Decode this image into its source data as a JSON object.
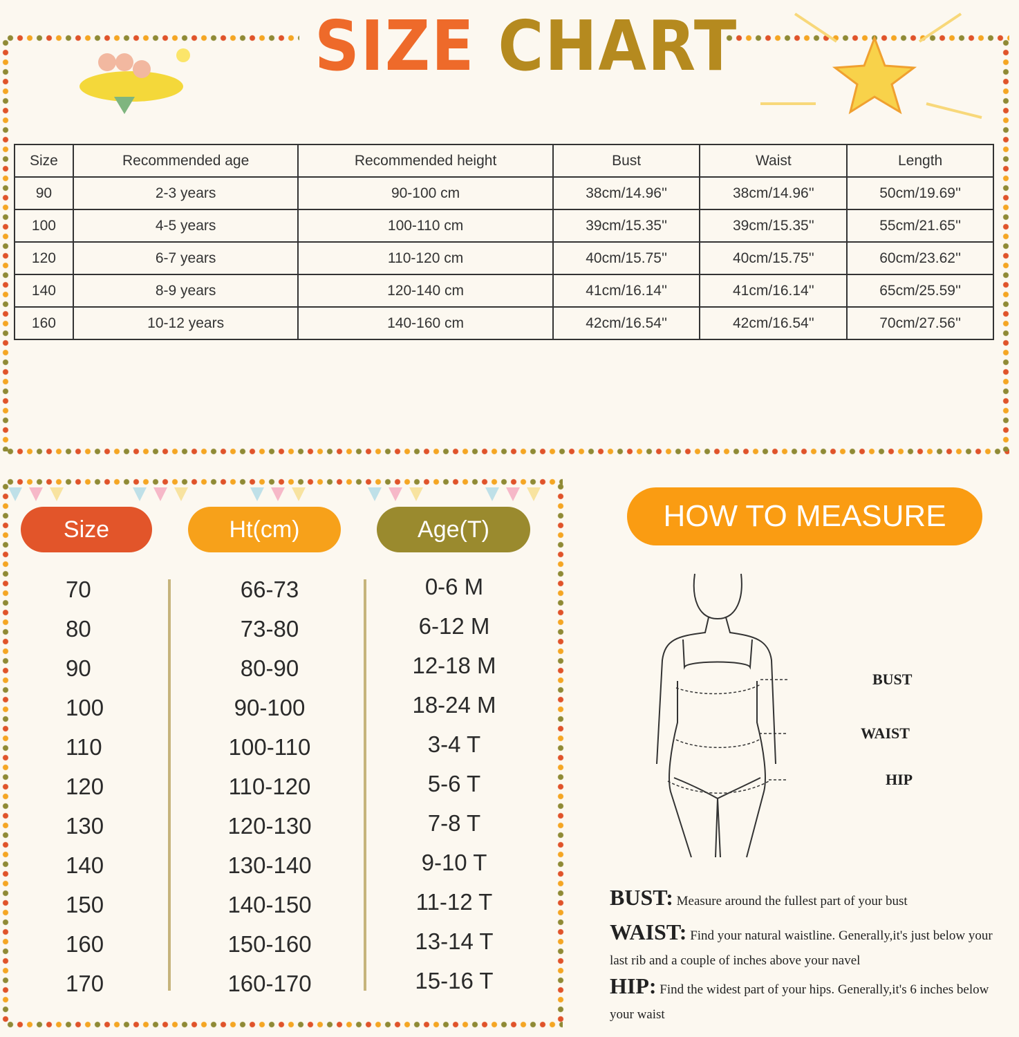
{
  "title": {
    "word1": "SIZE",
    "word2": "CHART"
  },
  "colors": {
    "red": "#e2552a",
    "orange": "#f7a11a",
    "olive": "#9a8a2e",
    "how_bg": "#fa9c12"
  },
  "top_table": {
    "headers": [
      "Size",
      "Recommended age",
      "Recommended height",
      "Bust",
      "Waist",
      "Length"
    ],
    "rows": [
      [
        "90",
        "2-3 years",
        "90-100 cm",
        "38cm/14.96''",
        "38cm/14.96''",
        "50cm/19.69''"
      ],
      [
        "100",
        "4-5 years",
        "100-110 cm",
        "39cm/15.35''",
        "39cm/15.35''",
        "55cm/21.65''"
      ],
      [
        "120",
        "6-7 years",
        "110-120 cm",
        "40cm/15.75''",
        "40cm/15.75''",
        "60cm/23.62''"
      ],
      [
        "140",
        "8-9 years",
        "120-140 cm",
        "41cm/16.14''",
        "41cm/16.14''",
        "65cm/25.59''"
      ],
      [
        "160",
        "10-12 years",
        "140-160 cm",
        "42cm/16.54''",
        "42cm/16.54''",
        "70cm/27.56''"
      ]
    ]
  },
  "bottom_table": {
    "headers": [
      "Size",
      "Ht(cm)",
      "Age(T)"
    ],
    "sizes": [
      "70",
      "80",
      "90",
      "100",
      "110",
      "120",
      "130",
      "140",
      "150",
      "160",
      "170"
    ],
    "heights": [
      "66-73",
      "73-80",
      "80-90",
      "90-100",
      "100-110",
      "110-120",
      "120-130",
      "130-140",
      "140-150",
      "150-160",
      "160-170"
    ],
    "ages": [
      "0-6 M",
      "6-12 M",
      "12-18 M",
      "18-24 M",
      "3-4 T",
      "5-6 T",
      "7-8 T",
      "9-10 T",
      "11-12 T",
      "13-14 T",
      "15-16 T"
    ]
  },
  "measure": {
    "title": "HOW TO MEASURE",
    "labels": [
      "BUST",
      "WAIST",
      "HIP"
    ],
    "instructions": [
      {
        "term": "BUST:",
        "text": "Measure around the fullest part of your bust"
      },
      {
        "term": "WAIST:",
        "text": "Find your natural waistline. Generally,it's just below your last rib and a couple of inches above your navel"
      },
      {
        "term": "HIP:",
        "text": "Find the widest part of your hips. Generally,it's 6 inches below your waist"
      }
    ]
  }
}
